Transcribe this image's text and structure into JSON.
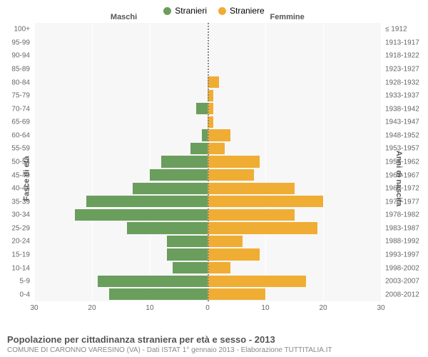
{
  "legend": {
    "male": {
      "label": "Stranieri",
      "color": "#6a9e5d"
    },
    "female": {
      "label": "Straniere",
      "color": "#f0ad33"
    }
  },
  "genderHeaders": {
    "male": "Maschi",
    "female": "Femmine"
  },
  "yAxisLeft": {
    "title": "Fasce di età"
  },
  "yAxisRight": {
    "title": "Anni di nascita"
  },
  "xAxis": {
    "max": 30,
    "ticks": [
      30,
      20,
      10,
      0,
      10,
      20,
      30
    ]
  },
  "ageGroups": [
    {
      "age": "100+",
      "birth": "≤ 1912",
      "m": 0,
      "f": 0
    },
    {
      "age": "95-99",
      "birth": "1913-1917",
      "m": 0,
      "f": 0
    },
    {
      "age": "90-94",
      "birth": "1918-1922",
      "m": 0,
      "f": 0
    },
    {
      "age": "85-89",
      "birth": "1923-1927",
      "m": 0,
      "f": 0
    },
    {
      "age": "80-84",
      "birth": "1928-1932",
      "m": 0,
      "f": 2
    },
    {
      "age": "75-79",
      "birth": "1933-1937",
      "m": 0,
      "f": 1
    },
    {
      "age": "70-74",
      "birth": "1938-1942",
      "m": 2,
      "f": 1
    },
    {
      "age": "65-69",
      "birth": "1943-1947",
      "m": 0,
      "f": 1
    },
    {
      "age": "60-64",
      "birth": "1948-1952",
      "m": 1,
      "f": 4
    },
    {
      "age": "55-59",
      "birth": "1953-1957",
      "m": 3,
      "f": 3
    },
    {
      "age": "50-54",
      "birth": "1958-1962",
      "m": 8,
      "f": 9
    },
    {
      "age": "45-49",
      "birth": "1963-1967",
      "m": 10,
      "f": 8
    },
    {
      "age": "40-44",
      "birth": "1968-1972",
      "m": 13,
      "f": 15
    },
    {
      "age": "35-39",
      "birth": "1973-1977",
      "m": 21,
      "f": 20
    },
    {
      "age": "30-34",
      "birth": "1978-1982",
      "m": 23,
      "f": 15
    },
    {
      "age": "25-29",
      "birth": "1983-1987",
      "m": 14,
      "f": 19
    },
    {
      "age": "20-24",
      "birth": "1988-1992",
      "m": 7,
      "f": 6
    },
    {
      "age": "15-19",
      "birth": "1993-1997",
      "m": 7,
      "f": 9
    },
    {
      "age": "10-14",
      "birth": "1998-2002",
      "m": 6,
      "f": 4
    },
    {
      "age": "5-9",
      "birth": "2003-2007",
      "m": 19,
      "f": 17
    },
    {
      "age": "0-4",
      "birth": "2008-2012",
      "m": 17,
      "f": 10
    }
  ],
  "chartStyle": {
    "background": "#f7f7f7",
    "gridColor": "#ffffff",
    "barGap": 2
  },
  "footer": {
    "title": "Popolazione per cittadinanza straniera per età e sesso - 2013",
    "subtitle": "COMUNE DI CARONNO VARESINO (VA) - Dati ISTAT 1° gennaio 2013 - Elaborazione TUTTITALIA.IT"
  }
}
